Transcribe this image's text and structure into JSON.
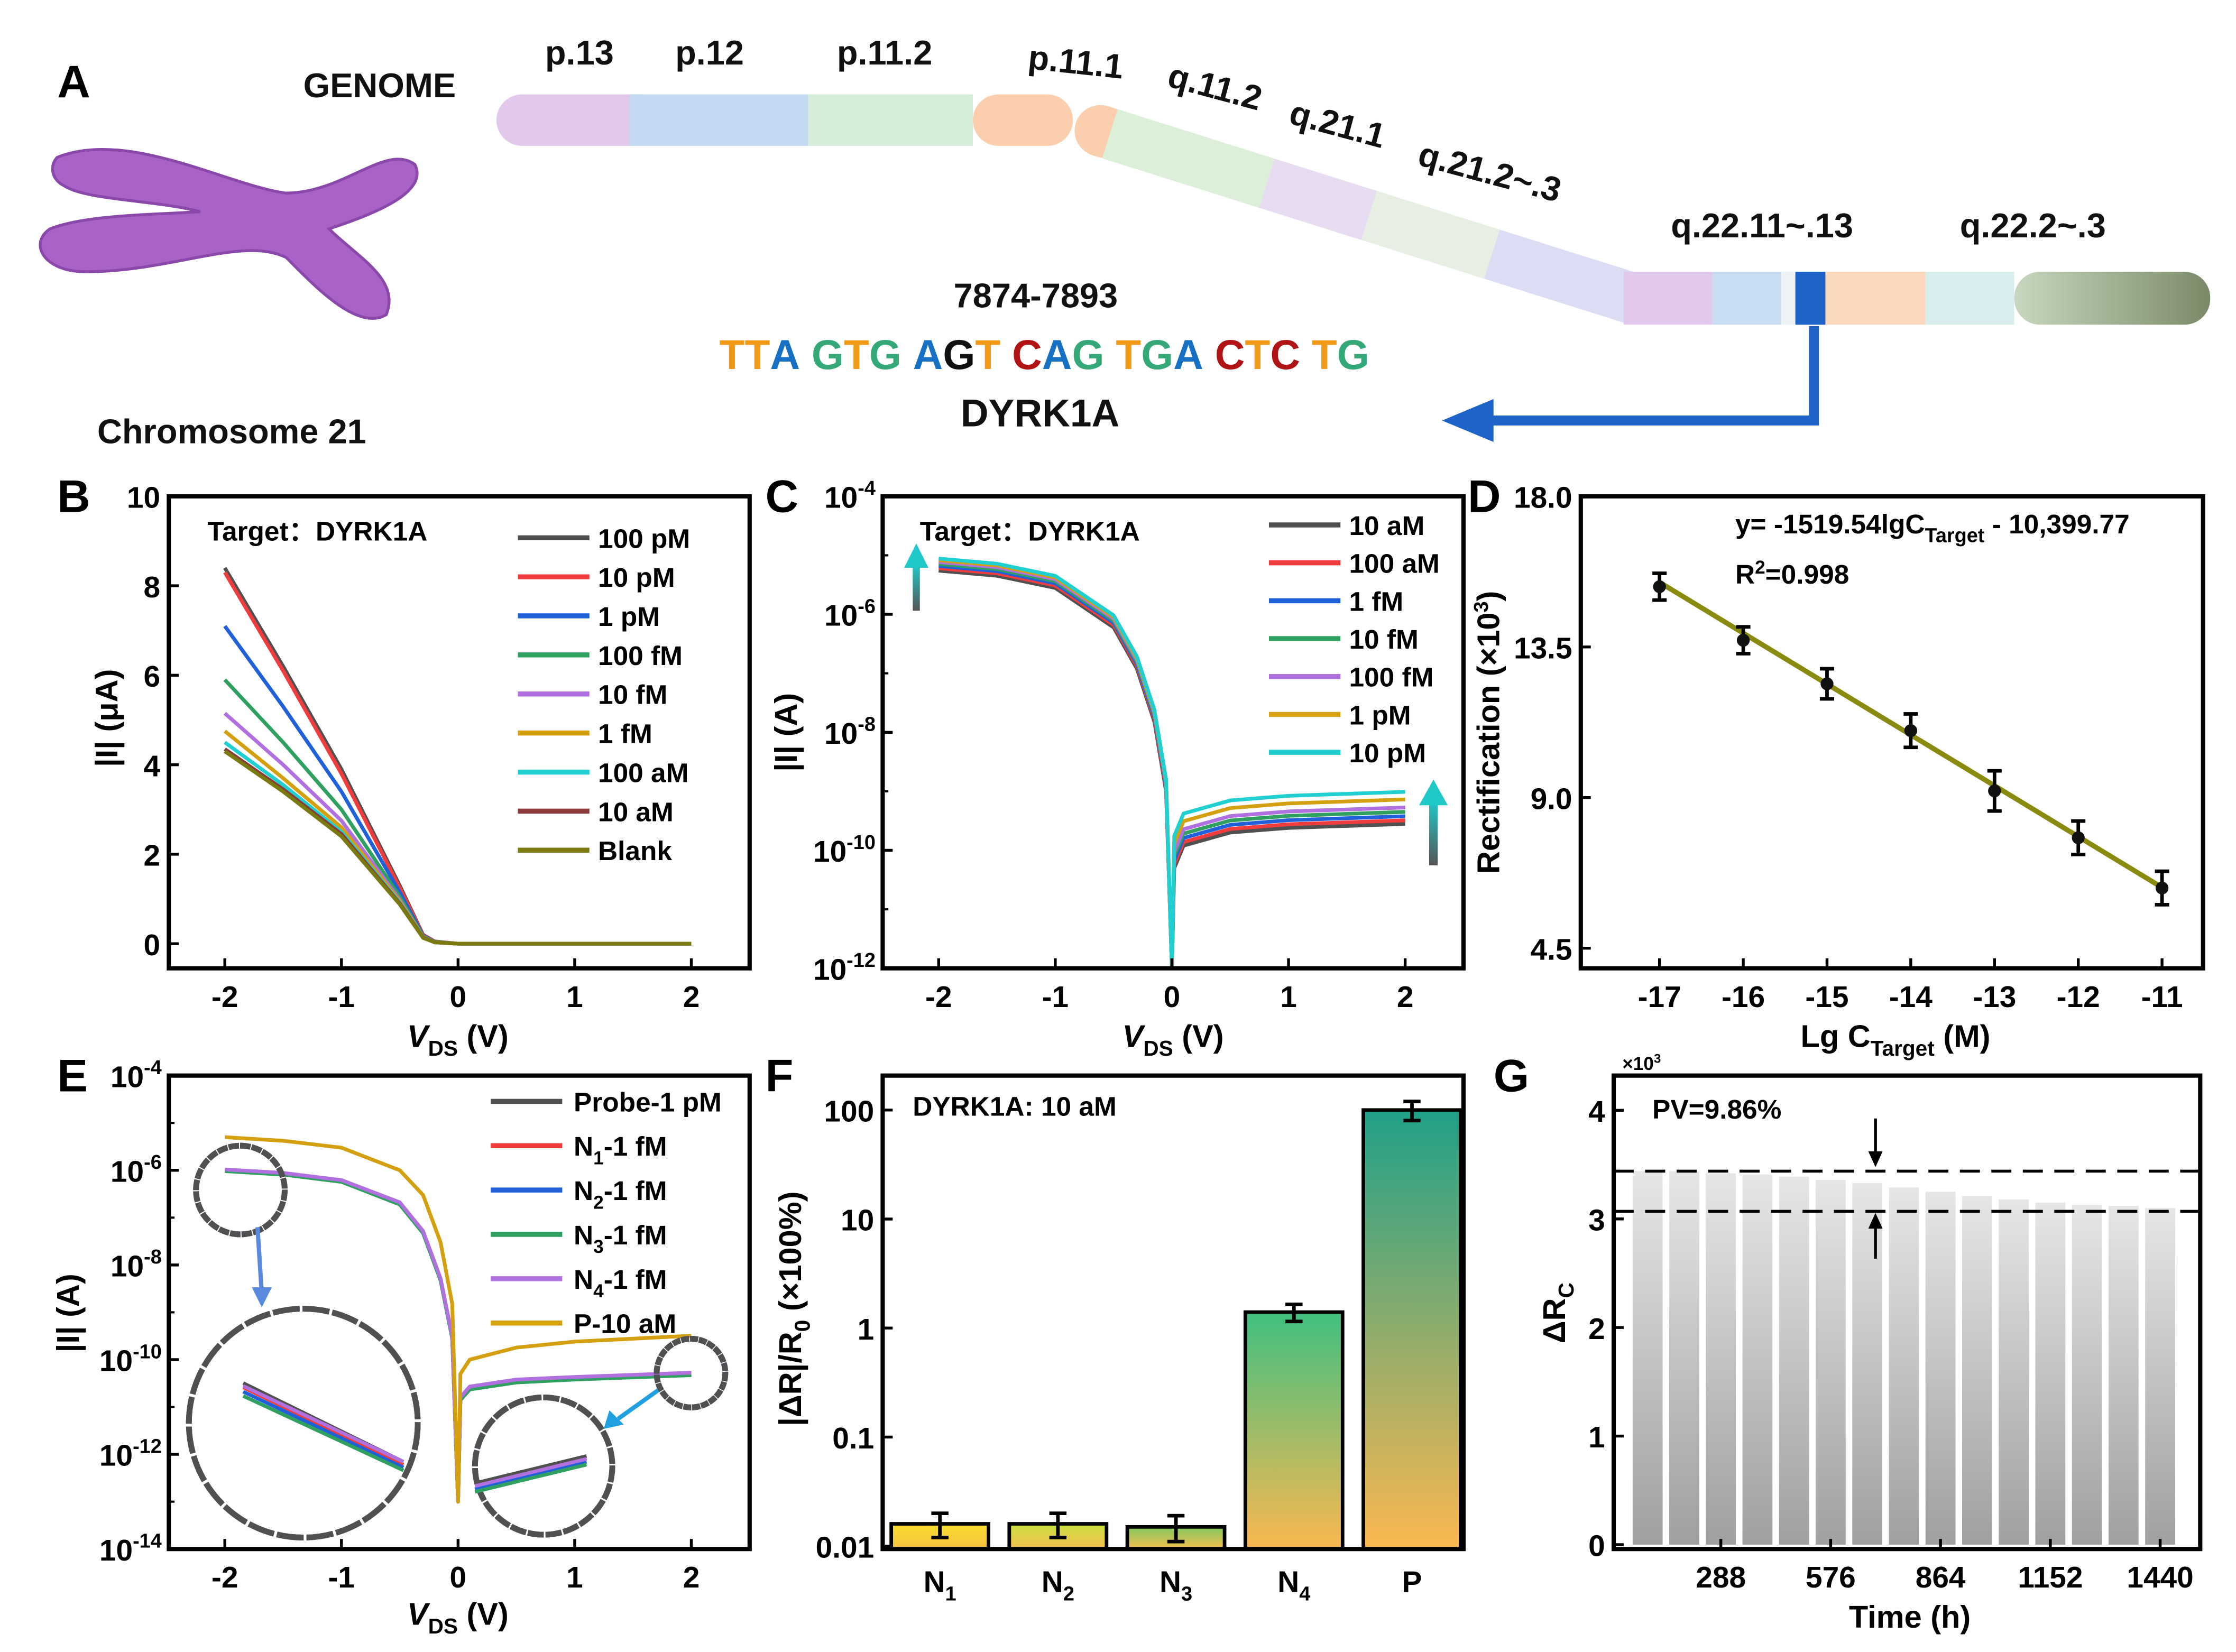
{
  "panel_labels": [
    "A",
    "B",
    "C",
    "D",
    "E",
    "F",
    "G"
  ],
  "panel_a": {
    "genome_label": "GENOME",
    "chromosome_label": "Chromosome 21",
    "bands": [
      "p.13",
      "p.12",
      "p.11.2",
      "p.11.1",
      "q.11.2",
      "q.21.1",
      "q.21.2~.3",
      "q.22.11~.13",
      "q.22.2~.3"
    ],
    "position": "7874-7893",
    "sequence": [
      {
        "b": "T",
        "color": "#f09a18"
      },
      {
        "b": "T",
        "color": "#f09a18"
      },
      {
        "b": "A",
        "color": "#1670c4"
      },
      {
        "b": " ",
        "color": "#000000"
      },
      {
        "b": "G",
        "color": "#35a878"
      },
      {
        "b": "T",
        "color": "#f09a18"
      },
      {
        "b": "G",
        "color": "#35a878"
      },
      {
        "b": " ",
        "color": "#000000"
      },
      {
        "b": "A",
        "color": "#1670c4"
      },
      {
        "b": "G",
        "color": "#111111"
      },
      {
        "b": "T",
        "color": "#f09a18"
      },
      {
        "b": " ",
        "color": "#000000"
      },
      {
        "b": "C",
        "color": "#b01414"
      },
      {
        "b": "A",
        "color": "#1670c4"
      },
      {
        "b": "G",
        "color": "#35a878"
      },
      {
        "b": " ",
        "color": "#000000"
      },
      {
        "b": "T",
        "color": "#f09a18"
      },
      {
        "b": "G",
        "color": "#35a878"
      },
      {
        "b": "A",
        "color": "#1670c4"
      },
      {
        "b": " ",
        "color": "#000000"
      },
      {
        "b": "C",
        "color": "#b01414"
      },
      {
        "b": "T",
        "color": "#f09a18"
      },
      {
        "b": "C",
        "color": "#b01414"
      },
      {
        "b": " ",
        "color": "#000000"
      },
      {
        "b": "T",
        "color": "#f09a18"
      },
      {
        "b": "G",
        "color": "#35a878"
      }
    ],
    "gene": "DYRK1A",
    "chromosome_color": "#a862c8",
    "highlight_band_color": "#1e64c8"
  },
  "chart_data": [
    {
      "panel": "B",
      "type": "line",
      "annotation": "Target：DYRK1A",
      "xlabel": {
        "main": "V",
        "sub": "DS",
        "rest": " (V)"
      },
      "ylabel": "|I| (μA)",
      "xlim": [
        -2.48,
        2.5
      ],
      "ylim": [
        -0.55,
        10
      ],
      "x_ticks": [
        "-2",
        "-1",
        "0",
        "1",
        "2"
      ],
      "y_ticks": [
        "0",
        "2",
        "4",
        "6",
        "8",
        "10"
      ],
      "x": [
        -2,
        -1.5,
        -1,
        -0.5,
        -0.3,
        -0.2,
        0,
        2
      ],
      "series": [
        {
          "name": "100 pM",
          "color": "#505050",
          "values": [
            8.4,
            6.2,
            3.9,
            1.3,
            0.2,
            0.05,
            0,
            0
          ]
        },
        {
          "name": "10 pM",
          "color": "#f03c3c",
          "values": [
            8.3,
            6.1,
            3.8,
            1.25,
            0.2,
            0.05,
            0,
            0
          ]
        },
        {
          "name": "1 pM",
          "color": "#2060d8",
          "values": [
            7.1,
            5.3,
            3.4,
            1.15,
            0.18,
            0.04,
            0,
            0
          ]
        },
        {
          "name": "100 fM",
          "color": "#30a060",
          "values": [
            5.9,
            4.5,
            3.0,
            1.05,
            0.16,
            0.04,
            0,
            0
          ]
        },
        {
          "name": "10 fM",
          "color": "#b070e0",
          "values": [
            5.15,
            4.0,
            2.75,
            0.98,
            0.15,
            0.03,
            0,
            0
          ]
        },
        {
          "name": "1 fM",
          "color": "#d4a010",
          "values": [
            4.75,
            3.7,
            2.6,
            0.95,
            0.15,
            0.03,
            0,
            0
          ]
        },
        {
          "name": "100 aM",
          "color": "#20d0d0",
          "values": [
            4.5,
            3.55,
            2.5,
            0.92,
            0.14,
            0.03,
            0,
            0
          ]
        },
        {
          "name": "10 aM",
          "color": "#8a3a3a",
          "values": [
            4.35,
            3.45,
            2.45,
            0.9,
            0.14,
            0.03,
            0,
            0
          ]
        },
        {
          "name": "Blank",
          "color": "#7a7a10",
          "values": [
            4.3,
            3.4,
            2.4,
            0.88,
            0.13,
            0.03,
            0,
            0
          ]
        }
      ],
      "legend": "top-right",
      "grid": false
    },
    {
      "panel": "C",
      "type": "line",
      "yscale": "log",
      "annotation": "Target：DYRK1A",
      "xlabel": {
        "main": "V",
        "sub": "DS",
        "rest": " (V)"
      },
      "ylabel": "|I| (A)",
      "xlim": [
        -2.48,
        2.5
      ],
      "ylim": [
        1e-12,
        0.0001
      ],
      "x_ticks": [
        "-2",
        "-1",
        "0",
        "1",
        "2"
      ],
      "y_tick_base": "10",
      "y_ticks": [
        "-4",
        "-6",
        "-8",
        "-10",
        "-12"
      ],
      "x": [
        -2,
        -1.5,
        -1,
        -0.5,
        -0.3,
        -0.15,
        -0.05,
        0,
        0.02,
        0.1,
        0.5,
        1,
        2
      ],
      "series": [
        {
          "name": "10 aM",
          "color": "#505050",
          "values": [
            5.5e-06,
            4.5e-06,
            2.8e-06,
            6e-07,
            1.2e-07,
            1.5e-08,
            1e-09,
            1e-12,
            5e-11,
            1.2e-10,
            2e-10,
            2.4e-10,
            2.8e-10
          ]
        },
        {
          "name": "100 aM",
          "color": "#f03c3c",
          "values": [
            6.05e-06,
            4.95e-06,
            3.08e-06,
            6.6e-07,
            1.32e-07,
            1.65e-08,
            1.1e-09,
            1e-12,
            5.75e-11,
            1.38e-10,
            2.3e-10,
            2.76e-10,
            3.22e-10
          ]
        },
        {
          "name": "1 fM",
          "color": "#2060d8",
          "values": [
            6.6e-06,
            5.4e-06,
            3.36e-06,
            7.2e-07,
            1.44e-07,
            1.8e-08,
            1.2e-09,
            1e-12,
            6.75e-11,
            1.62e-10,
            2.7e-10,
            3.24e-10,
            3.78e-10
          ]
        },
        {
          "name": "10 fM",
          "color": "#30a060",
          "values": [
            7.15e-06,
            5.85e-06,
            3.64e-06,
            7.8e-07,
            1.56e-07,
            1.95e-08,
            1.3e-09,
            1e-12,
            8e-11,
            1.92e-10,
            3.2e-10,
            3.84e-10,
            4.48e-10
          ]
        },
        {
          "name": "100 fM",
          "color": "#b070e0",
          "values": [
            7.7e-06,
            6.3e-06,
            3.92e-06,
            8.4e-07,
            1.68e-07,
            2.1e-08,
            1.4e-09,
            1e-12,
            9.5e-11,
            2.28e-10,
            3.8e-10,
            4.56e-10,
            5.32e-10
          ]
        },
        {
          "name": "1 pM",
          "color": "#d4a010",
          "values": [
            8.25e-06,
            6.75e-06,
            4.2e-06,
            9e-07,
            1.8e-07,
            2.25e-08,
            1.5e-09,
            1e-12,
            1.3e-10,
            3.12e-10,
            5.2e-10,
            6.24e-10,
            7.28e-10
          ]
        },
        {
          "name": "10 pM",
          "color": "#20d0d0",
          "values": [
            8.8e-06,
            7.2e-06,
            4.48e-06,
            9.6e-07,
            1.92e-07,
            2.4e-08,
            1.6e-09,
            1e-12,
            1.75e-10,
            4.2e-10,
            7e-10,
            8.4e-10,
            9.8e-10
          ]
        }
      ],
      "legend": "top-right",
      "grid": false
    },
    {
      "panel": "D",
      "type": "scatter",
      "equation": {
        "pre": "y= -1519.54lgC",
        "sub": "Target",
        "post": " - 10,399.77"
      },
      "r2": {
        "pre": "R",
        "sup": "2",
        "post": "=0.998"
      },
      "xlabel": {
        "main": "Lg C",
        "sub": "Target",
        "rest": " (M)"
      },
      "ylabel": {
        "main": "Rectification (×10",
        "sup": "3",
        "rest": ")"
      },
      "xlim": [
        -17.94,
        -10.51
      ],
      "ylim": [
        3.9,
        18.0
      ],
      "x_ticks": [
        "-17",
        "-16",
        "-15",
        "-14",
        "-13",
        "-12",
        "-11"
      ],
      "y_ticks": [
        "4.5",
        "9.0",
        "13.5",
        "18.0"
      ],
      "x": [
        -17,
        -16,
        -15,
        -14,
        -13,
        -12,
        -11
      ],
      "values": [
        15.3,
        13.7,
        12.4,
        11.0,
        9.2,
        7.8,
        6.3
      ],
      "errors": [
        0.4,
        0.4,
        0.45,
        0.5,
        0.6,
        0.5,
        0.5
      ],
      "fit": {
        "slope": -1519.54,
        "intercept": -10399.77,
        "scale": 1000,
        "color": "#8a8a10"
      },
      "grid": false
    },
    {
      "panel": "E",
      "type": "line",
      "yscale": "log",
      "xlabel": {
        "main": "V",
        "sub": "DS",
        "rest": " (V)"
      },
      "ylabel": "|I| (A)",
      "xlim": [
        -2.48,
        2.5
      ],
      "ylim": [
        1e-14,
        0.0001
      ],
      "x_ticks": [
        "-2",
        "-1",
        "0",
        "1",
        "2"
      ],
      "y_tick_base": "10",
      "y_ticks": [
        "-4",
        "-6",
        "-8",
        "-10",
        "-12",
        "-14"
      ],
      "x": [
        -2,
        -1.5,
        -1,
        -0.5,
        -0.3,
        -0.15,
        -0.05,
        0,
        0.02,
        0.1,
        0.5,
        1,
        2
      ],
      "series": [
        {
          "name": "Probe-1 pM",
          "sub": "",
          "rest": "",
          "color": "#505050",
          "values": [
            9.7e-07,
            8.2e-07,
            5.8e-07,
            1.9e-07,
            4.8e-08,
            4.8e-09,
            2.9e-10,
            1e-13,
            1.45e-11,
            2.4e-11,
            3.4e-11,
            3.9e-11,
            4.8e-11
          ]
        },
        {
          "name": "N",
          "sub": "1",
          "rest": "-1 fM",
          "color": "#f03c3c",
          "values": [
            1e-06,
            8.5e-07,
            6e-07,
            2e-07,
            5e-08,
            5e-09,
            3e-10,
            1e-13,
            1.5e-11,
            2.5e-11,
            3.5e-11,
            4e-11,
            5e-11
          ]
        },
        {
          "name": "N",
          "sub": "2",
          "rest": "-1 fM",
          "color": "#2060d8",
          "values": [
            9.8e-07,
            8.3e-07,
            5.9e-07,
            1.95e-07,
            4.9e-08,
            4.9e-09,
            2.95e-10,
            1e-13,
            1.48e-11,
            2.45e-11,
            3.45e-11,
            3.95e-11,
            4.9e-11
          ]
        },
        {
          "name": "N",
          "sub": "3",
          "rest": "-1 fM",
          "color": "#30a060",
          "values": [
            9.6e-07,
            8.1e-07,
            5.7e-07,
            1.9e-07,
            4.7e-08,
            4.7e-09,
            2.8e-10,
            1e-13,
            1.4e-11,
            2.35e-11,
            3.3e-11,
            3.8e-11,
            4.7e-11
          ]
        },
        {
          "name": "N",
          "sub": "4",
          "rest": "-1 fM",
          "color": "#b070e0",
          "values": [
            1.04e-06,
            8.8e-07,
            6.2e-07,
            2.1e-07,
            5.2e-08,
            5.2e-09,
            3.1e-10,
            1e-13,
            1.6e-11,
            2.7e-11,
            3.8e-11,
            4.3e-11,
            5.3e-11
          ]
        },
        {
          "name": "P-10 aM",
          "sub": "",
          "rest": "",
          "color": "#d4a010",
          "values": [
            5e-06,
            4.2e-06,
            3e-06,
            1e-06,
            3e-07,
            3e-08,
            1.5e-09,
            1e-13,
            5e-11,
            1e-10,
            1.8e-10,
            2.4e-10,
            3.2e-10
          ]
        }
      ],
      "legend": "top-right",
      "grid": false
    },
    {
      "panel": "F",
      "type": "bar",
      "yscale": "log",
      "annotation": "DYRK1A: 10 aM",
      "ylabel": {
        "main": "|ΔR|/R",
        "sub": "0",
        "rest": " (×100%)"
      },
      "ylim": [
        0.0094,
        207
      ],
      "y_ticks": [
        "0.01",
        "0.1",
        "1",
        "10",
        "100"
      ],
      "categories": [
        {
          "main": "N",
          "sub": "1"
        },
        {
          "main": "N",
          "sub": "2"
        },
        {
          "main": "N",
          "sub": "3"
        },
        {
          "main": "N",
          "sub": "4"
        },
        {
          "main": "P",
          "sub": ""
        }
      ],
      "values": [
        0.016,
        0.016,
        0.015,
        1.4,
        100
      ],
      "errors": [
        0.004,
        0.004,
        0.004,
        0.25,
        20
      ],
      "bar_colors": [
        [
          "#f8e030",
          "#f8c040"
        ],
        [
          "#c8e040",
          "#f8c050"
        ],
        [
          "#80c860",
          "#f8c050"
        ],
        [
          "#40c080",
          "#fbb850"
        ],
        [
          "#20a088",
          "#fbb850"
        ]
      ],
      "grid": false
    },
    {
      "panel": "G",
      "type": "bar",
      "annotation": "PV=9.86%",
      "annotation_color": "#2a8a9a",
      "multiplier": {
        "main": "×10",
        "sup": "3"
      },
      "ylabel": {
        "main": "ΔR",
        "sub": "C"
      },
      "xlabel": "Time (h)",
      "xlim": [
        7,
        1545
      ],
      "ylim": [
        -0.04,
        4.32
      ],
      "x_ticks": [
        "288",
        "576",
        "864",
        "1152",
        "1440"
      ],
      "y_ticks": [
        "0",
        "1",
        "2",
        "3",
        "4"
      ],
      "x": [
        96,
        192,
        288,
        384,
        480,
        576,
        672,
        768,
        864,
        960,
        1056,
        1152,
        1248,
        1344,
        1440
      ],
      "values": [
        3.44,
        3.44,
        3.42,
        3.41,
        3.39,
        3.36,
        3.33,
        3.29,
        3.25,
        3.21,
        3.18,
        3.15,
        3.13,
        3.12,
        3.1
      ],
      "reference_lines": [
        3.44,
        3.07
      ],
      "bar_colors": [
        "#e6e6e6",
        "#a0a0a0"
      ],
      "grid": false
    }
  ]
}
